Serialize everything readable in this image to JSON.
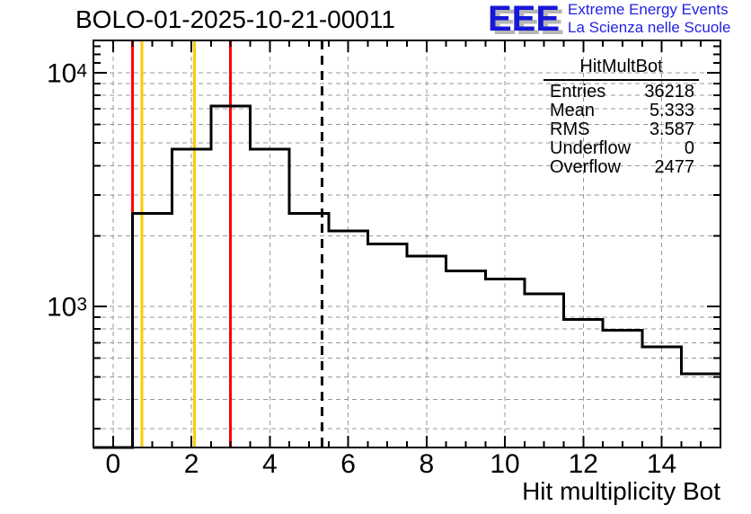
{
  "title": "BOLO-01-2025-10-21-00011",
  "logo": {
    "acronym": "EEE",
    "line1": "Extreme Energy Events",
    "line2": "La Scienza nelle Scuole",
    "text_color": "#2222e2",
    "acronym_color": "#1717d9",
    "shadow_color": "#b5b5b5"
  },
  "stats": {
    "title": "HitMultBot",
    "rows": [
      {
        "label": "Entries",
        "value": "36218"
      },
      {
        "label": "Mean",
        "value": "5.333"
      },
      {
        "label": "RMS",
        "value": "3.587"
      },
      {
        "label": "Underflow",
        "value": "0"
      },
      {
        "label": "Overflow",
        "value": "2477"
      }
    ]
  },
  "chart_data": {
    "type": "bar",
    "style": "step-outline-histogram",
    "title": "BOLO-01-2025-10-21-00011",
    "xlabel": "Hit multiplicity Bot",
    "ylabel": "",
    "x_bin_centers": [
      0,
      1,
      2,
      3,
      4,
      5,
      6,
      7,
      8,
      9,
      10,
      11,
      12,
      13,
      14,
      15
    ],
    "values": [
      0,
      2500,
      4700,
      7200,
      4700,
      2500,
      2100,
      1850,
      1640,
      1420,
      1310,
      1130,
      880,
      790,
      670,
      515
    ],
    "bin_width": 1,
    "xlim": [
      -0.5,
      15.5
    ],
    "ylim": [
      249,
      13750
    ],
    "yscale": "log",
    "grid": true,
    "x_major_ticks": [
      0,
      2,
      4,
      6,
      8,
      10,
      12,
      14
    ],
    "x_minor_tick_step": 0.5,
    "y_decade_labels": [
      {
        "mantissa": "10",
        "exponent": "3",
        "value": 1000
      },
      {
        "mantissa": "10",
        "exponent": "4",
        "value": 10000
      }
    ],
    "marker_lines": [
      {
        "x": 0.5,
        "color": "#ff0000",
        "style": "solid"
      },
      {
        "x": 0.74,
        "color": "#ffcc00",
        "style": "solid"
      },
      {
        "x": 2.08,
        "color": "#ffcc00",
        "style": "solid"
      },
      {
        "x": 3.0,
        "color": "#ff0000",
        "style": "solid"
      }
    ],
    "mean_line": {
      "x": 5.333,
      "color": "#000000",
      "style": "dashed"
    },
    "colors": {
      "histogram": "#000000",
      "grid": "#999999",
      "frame": "#000000"
    }
  }
}
